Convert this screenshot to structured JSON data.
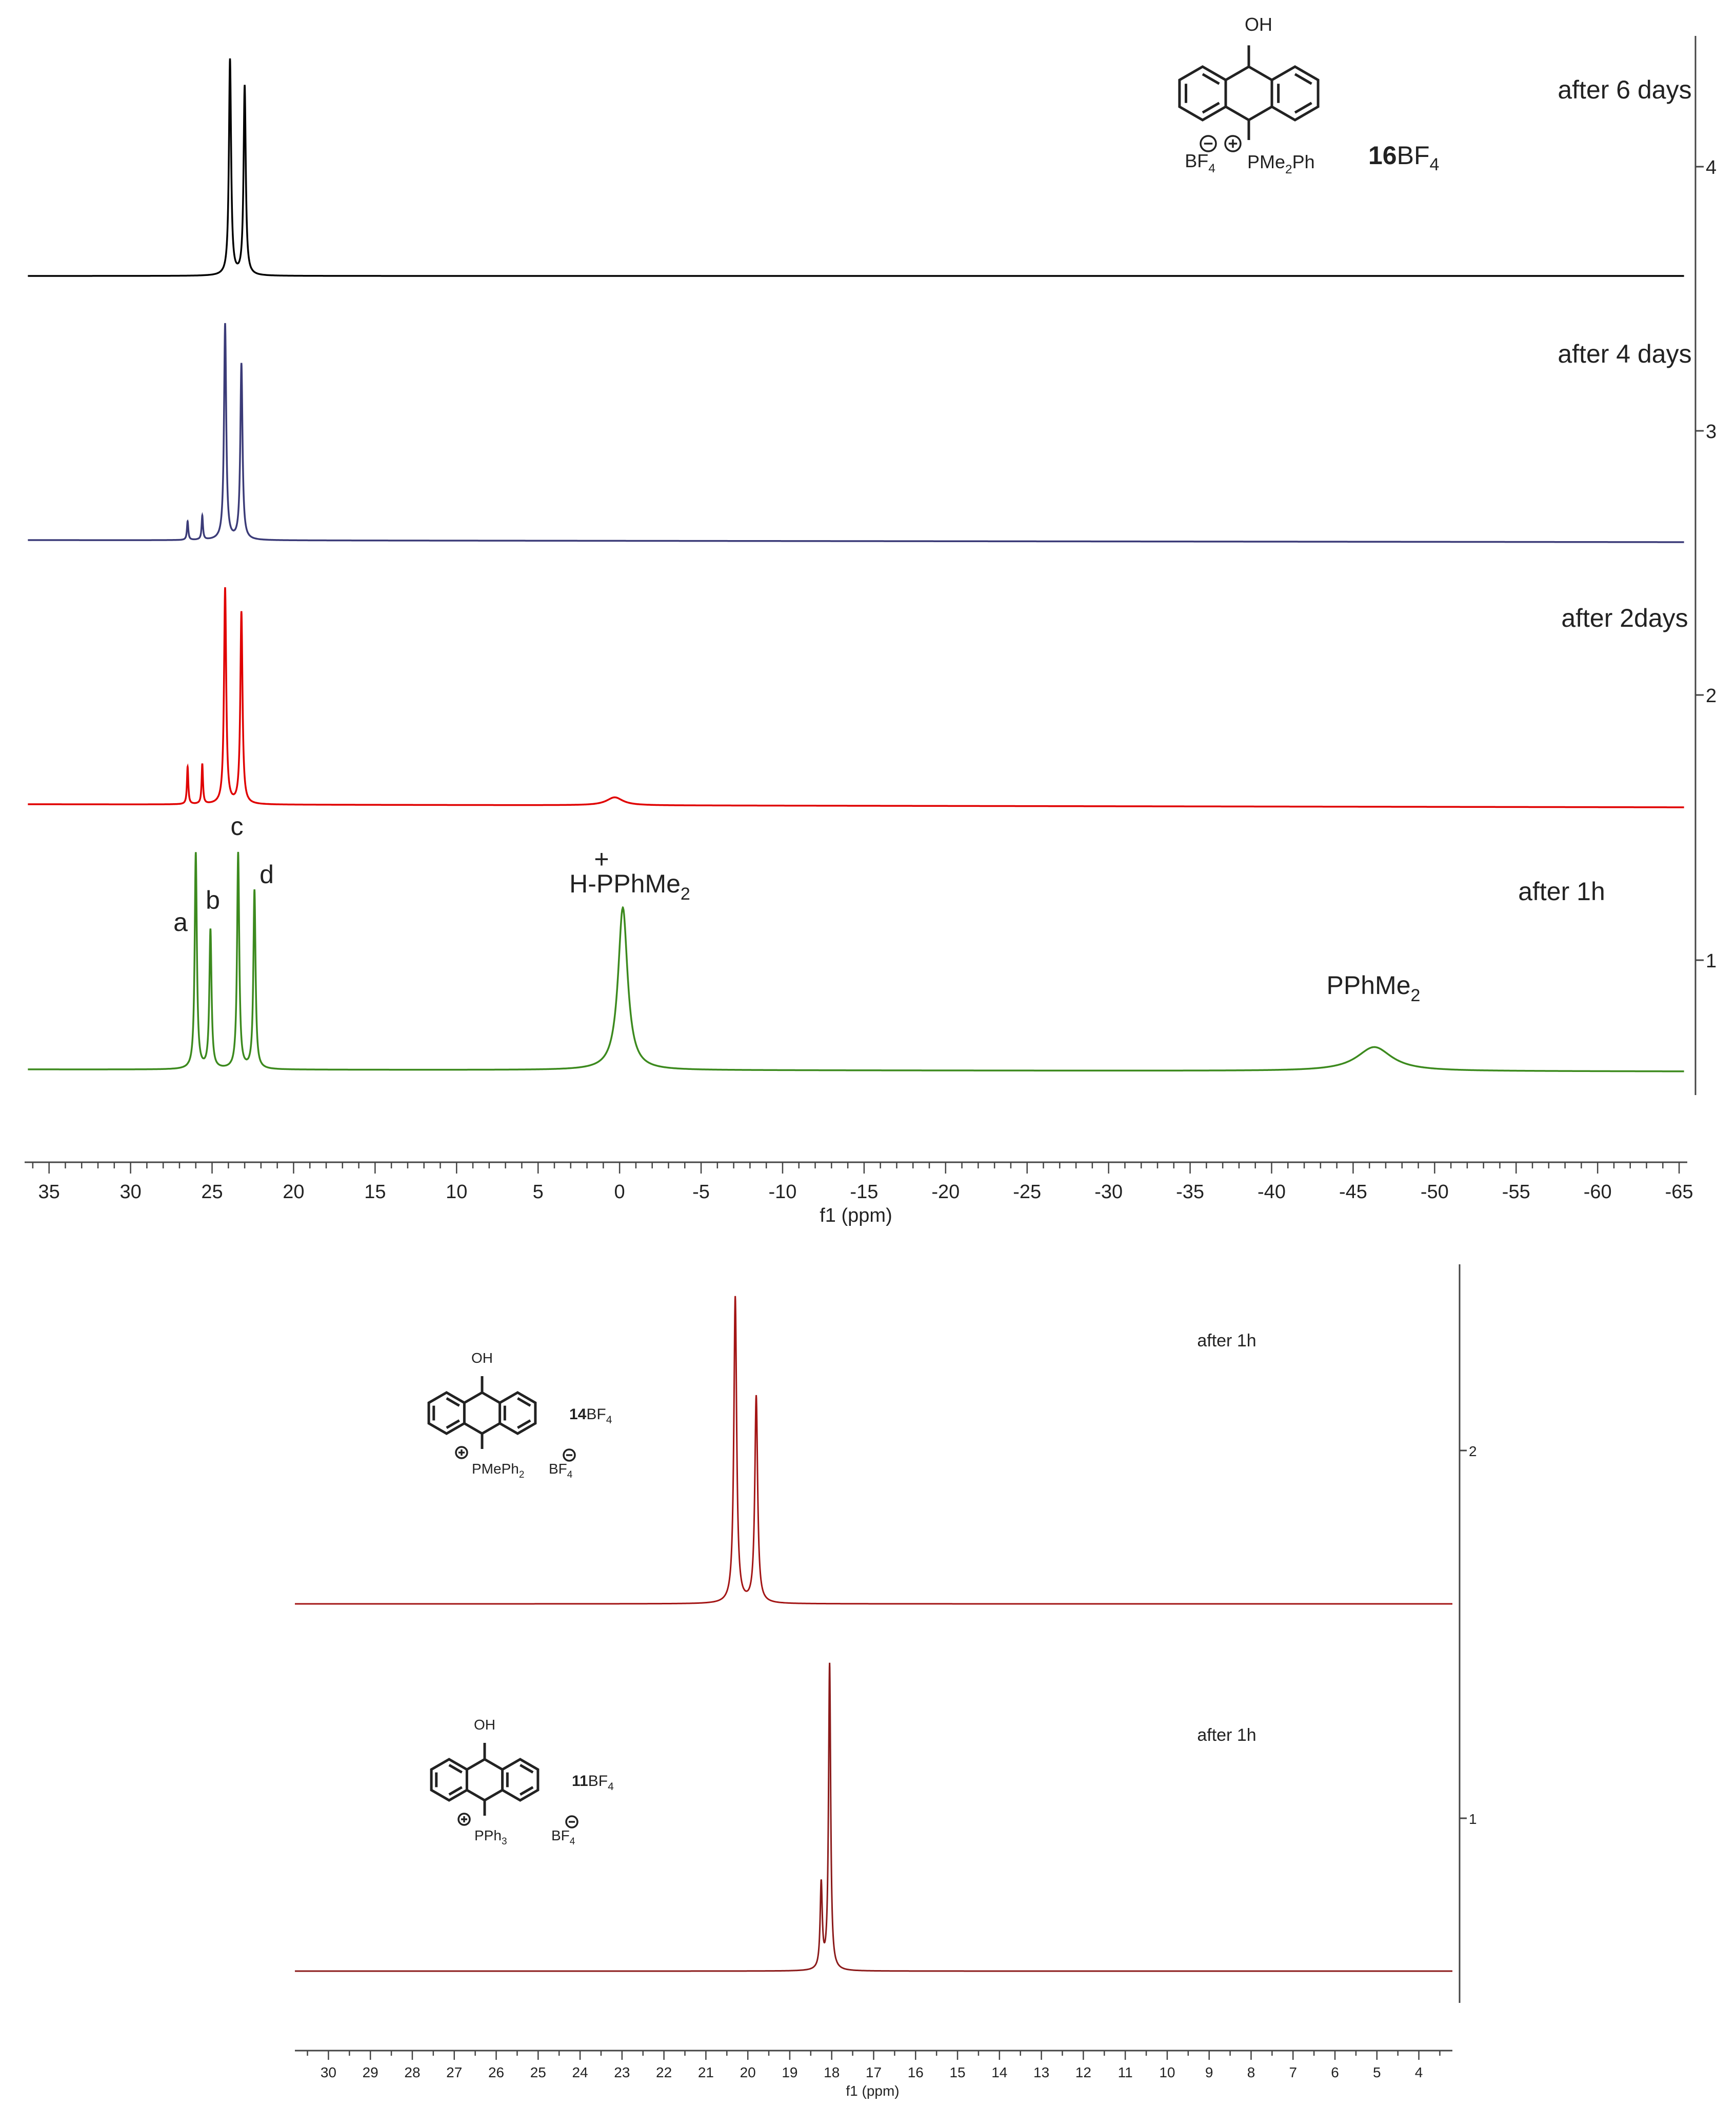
{
  "chart_data": [
    {
      "type": "line",
      "xlabel": "f1 (ppm)",
      "xlim": [
        36.5,
        -65.5
      ],
      "x_ticks": [
        35,
        30,
        25,
        20,
        15,
        10,
        5,
        0,
        -5,
        -10,
        -15,
        -20,
        -25,
        -30,
        -35,
        -40,
        -45,
        -50,
        -55,
        -60,
        -65
      ],
      "y_ticks": [
        1,
        2,
        3,
        4
      ],
      "compound": {
        "label_bold": "16",
        "label_rest": "BF",
        "label_sub": "4",
        "oh": "OH",
        "anion": "BF",
        "anion_sub": "4",
        "cation": "PMe",
        "cation_sub": "2",
        "cation_tail": "Ph"
      },
      "annotations": [
        {
          "text": "a",
          "x": 26.8
        },
        {
          "text": "b",
          "x": 25.2
        },
        {
          "text": "c",
          "x": 23.6
        },
        {
          "text": "d",
          "x": 21.6
        },
        {
          "text": "+",
          "x": 1.2
        },
        {
          "text": "H-PPhMe",
          "sub": "2",
          "x": 0.5
        },
        {
          "text": "PPhMe",
          "sub": "2",
          "x": -46.0
        }
      ],
      "series": [
        {
          "name": "after 6 days",
          "index": 4,
          "color": "#000000",
          "peaks": [
            {
              "x": 23.9,
              "h": 0.81,
              "w": 0.08
            },
            {
              "x": 23.0,
              "h": 0.71,
              "w": 0.08
            }
          ]
        },
        {
          "name": "after 4 days",
          "index": 3,
          "color": "#3b3b78",
          "peaks": [
            {
              "x": 26.5,
              "h": 0.07,
              "w": 0.05
            },
            {
              "x": 25.6,
              "h": 0.09,
              "w": 0.05
            },
            {
              "x": 24.2,
              "h": 0.81,
              "w": 0.08
            },
            {
              "x": 23.2,
              "h": 0.66,
              "w": 0.08
            }
          ]
        },
        {
          "name": "after 2days",
          "index": 2,
          "color": "#e00000",
          "peaks": [
            {
              "x": 26.5,
              "h": 0.14,
              "w": 0.05
            },
            {
              "x": 25.6,
              "h": 0.15,
              "w": 0.05
            },
            {
              "x": 24.2,
              "h": 0.81,
              "w": 0.08
            },
            {
              "x": 23.2,
              "h": 0.72,
              "w": 0.08
            },
            {
              "x": 0.3,
              "h": 0.03,
              "w": 0.6
            }
          ]
        },
        {
          "name": "after 1h",
          "index": 1,
          "color": "#3c8a1e",
          "peaks": [
            {
              "x": 26.0,
              "h": 0.81,
              "w": 0.08
            },
            {
              "x": 25.1,
              "h": 0.52,
              "w": 0.08
            },
            {
              "x": 23.4,
              "h": 0.81,
              "w": 0.08
            },
            {
              "x": 22.4,
              "h": 0.67,
              "w": 0.08
            },
            {
              "x": -0.2,
              "h": 0.61,
              "w": 0.35
            },
            {
              "x": -46.3,
              "h": 0.09,
              "w": 1.3
            }
          ]
        }
      ]
    },
    {
      "type": "line",
      "xlabel": "f1 (ppm)",
      "xlim": [
        30.8,
        3.2
      ],
      "x_ticks": [
        30,
        29,
        28,
        27,
        26,
        25,
        24,
        23,
        22,
        21,
        20,
        19,
        18,
        17,
        16,
        15,
        14,
        13,
        12,
        11,
        10,
        9,
        8,
        7,
        6,
        5,
        4
      ],
      "y_ticks": [
        1,
        2
      ],
      "series": [
        {
          "name": "after 1h",
          "index": 2,
          "color": "#a31515",
          "compound": {
            "label_bold": "14",
            "label_rest": "BF",
            "label_sub": "4",
            "oh": "OH",
            "cation": "PMePh",
            "cation_sub": "2",
            "anion": "BF",
            "anion_sub": "4"
          },
          "peaks": [
            {
              "x": 20.3,
              "h": 0.83,
              "w": 0.04
            },
            {
              "x": 19.8,
              "h": 0.56,
              "w": 0.04
            }
          ]
        },
        {
          "name": "after 1h",
          "index": 1,
          "color": "#8b1a1a",
          "compound": {
            "label_bold": "11",
            "label_rest": "BF",
            "label_sub": "4",
            "oh": "OH",
            "cation": "PPh",
            "cation_sub": "3",
            "anion": "BF",
            "anion_sub": "4"
          },
          "peaks": [
            {
              "x": 18.05,
              "h": 0.83,
              "w": 0.03
            },
            {
              "x": 18.25,
              "h": 0.23,
              "w": 0.03
            }
          ]
        }
      ]
    }
  ]
}
